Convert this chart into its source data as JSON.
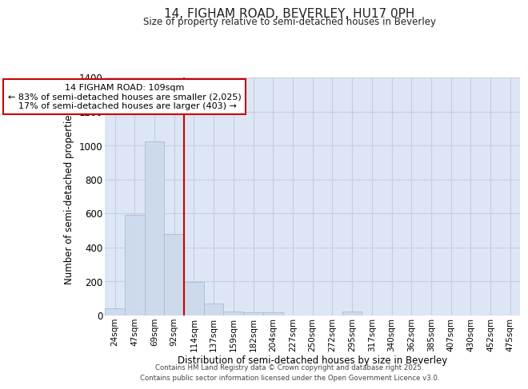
{
  "title": "14, FIGHAM ROAD, BEVERLEY, HU17 0PH",
  "subtitle": "Size of property relative to semi-detached houses in Beverley",
  "xlabel": "Distribution of semi-detached houses by size in Beverley",
  "ylabel": "Number of semi-detached properties",
  "categories": [
    "24sqm",
    "47sqm",
    "69sqm",
    "92sqm",
    "114sqm",
    "137sqm",
    "159sqm",
    "182sqm",
    "204sqm",
    "227sqm",
    "250sqm",
    "272sqm",
    "295sqm",
    "317sqm",
    "340sqm",
    "362sqm",
    "385sqm",
    "407sqm",
    "430sqm",
    "452sqm",
    "475sqm"
  ],
  "values": [
    38,
    590,
    1025,
    480,
    193,
    68,
    22,
    15,
    15,
    0,
    0,
    0,
    20,
    0,
    0,
    0,
    0,
    0,
    0,
    0,
    0
  ],
  "bar_color": "#ccdaeb",
  "bar_edge_color": "#aabdd4",
  "grid_color": "#c5cfe0",
  "bg_color": "#dde6f5",
  "vline_color": "#cc0000",
  "annotation_text_line1": "14 FIGHAM ROAD: 109sqm",
  "annotation_text_line2": "← 83% of semi-detached houses are smaller (2,025)",
  "annotation_text_line3": "  17% of semi-detached houses are larger (403) →",
  "annotation_box_color": "#ffffff",
  "annotation_box_edge": "#cc0000",
  "footer_line1": "Contains HM Land Registry data © Crown copyright and database right 2025.",
  "footer_line2": "Contains public sector information licensed under the Open Government Licence v3.0.",
  "ylim": [
    0,
    1400
  ],
  "yticks": [
    0,
    200,
    400,
    600,
    800,
    1000,
    1200,
    1400
  ]
}
